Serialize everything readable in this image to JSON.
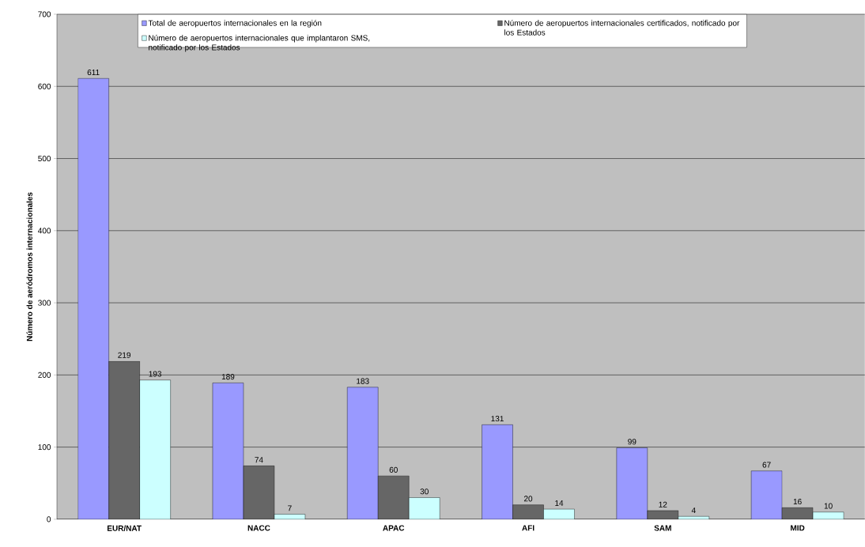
{
  "chart_data": {
    "type": "bar",
    "ylabel": "Número de aeródromos internacionales",
    "categories": [
      "EUR/NAT",
      "NACC",
      "APAC",
      "AFI",
      "SAM",
      "MID"
    ],
    "series": [
      {
        "name": "Total de aeropuertos internacionales en la región",
        "color": "#9999ff",
        "values": [
          611,
          189,
          183,
          131,
          99,
          67
        ]
      },
      {
        "name": "Número de aeropuertos internacionales certificados, notificado por los Estados",
        "color": "#666666",
        "values": [
          219,
          74,
          60,
          20,
          12,
          16
        ]
      },
      {
        "name": "Número de aeropuertos internacionales que implantaron SMS, notificado por los Estados",
        "color": "#ccffff",
        "values": [
          193,
          7,
          30,
          14,
          4,
          10
        ]
      }
    ],
    "ylim": [
      0,
      700
    ],
    "yticks": [
      0,
      100,
      200,
      300,
      400,
      500,
      600,
      700
    ],
    "grid": "y",
    "legend": "top",
    "data_labels": true
  }
}
